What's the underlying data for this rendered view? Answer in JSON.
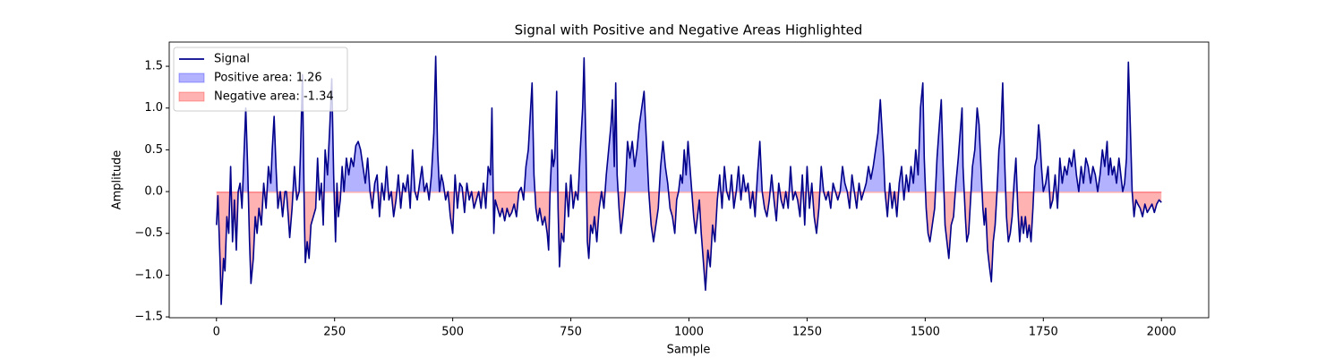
{
  "chart_data": {
    "type": "line",
    "title": "Signal with Positive and Negative Areas Highlighted",
    "xlabel": "Sample",
    "ylabel": "Amplitude",
    "xlim": [
      -100,
      2100
    ],
    "xticks": [
      0,
      250,
      500,
      750,
      1000,
      1250,
      1500,
      1750,
      2000
    ],
    "ylim": [
      -1.51,
      1.79
    ],
    "yticks": [
      {
        "value": -1.5,
        "label": "−1.5"
      },
      {
        "value": -1.0,
        "label": "−1.0"
      },
      {
        "value": -0.5,
        "label": "−0.5"
      },
      {
        "value": 0,
        "label": "0.0"
      },
      {
        "value": 0.5,
        "label": "0.5"
      },
      {
        "value": 1.0,
        "label": "1.0"
      },
      {
        "value": 1.5,
        "label": "1.5"
      }
    ],
    "legend": "upper left",
    "fills": [
      {
        "name": "Positive area: 1.26",
        "color": "#0000ff",
        "where": "above"
      },
      {
        "name": "Negative area: -1.34",
        "color": "#ff0000",
        "where": "below"
      }
    ],
    "x": [
      0,
      3,
      8,
      10,
      15,
      18,
      22,
      26,
      30,
      34,
      38,
      42,
      46,
      50,
      54,
      58,
      62,
      66,
      70,
      73,
      78,
      82,
      86,
      90,
      95,
      100,
      105,
      110,
      115,
      118,
      122,
      126,
      130,
      135,
      140,
      145,
      148,
      152,
      155,
      160,
      165,
      170,
      175,
      178,
      182,
      186,
      188,
      192,
      196,
      200,
      205,
      210,
      214,
      218,
      222,
      226,
      230,
      235,
      240,
      244,
      248,
      252,
      255,
      258,
      262,
      266,
      270,
      275,
      280,
      285,
      290,
      295,
      300,
      305,
      310,
      315,
      320,
      325,
      330,
      335,
      340,
      345,
      350,
      355,
      360,
      365,
      370,
      375,
      380,
      385,
      390,
      395,
      400,
      405,
      410,
      415,
      420,
      425,
      430,
      435,
      440,
      445,
      450,
      455,
      460,
      464,
      468,
      472,
      476,
      480,
      485,
      490,
      495,
      500,
      505,
      510,
      515,
      520,
      525,
      530,
      535,
      540,
      545,
      550,
      555,
      560,
      565,
      570,
      575,
      580,
      583,
      587,
      590,
      595,
      600,
      605,
      610,
      615,
      620,
      625,
      630,
      635,
      640,
      645,
      650,
      655,
      660,
      665,
      668,
      672,
      676,
      680,
      684,
      690,
      695,
      700,
      703,
      706,
      710,
      713,
      716,
      720,
      723,
      726,
      730,
      735,
      740,
      745,
      750,
      755,
      760,
      765,
      770,
      775,
      778,
      782,
      785,
      788,
      792,
      796,
      800,
      805,
      810,
      815,
      820,
      825,
      830,
      835,
      838,
      842,
      845,
      848,
      852,
      856,
      860,
      865,
      870,
      875,
      880,
      885,
      890,
      895,
      900,
      905,
      910,
      915,
      920,
      925,
      930,
      935,
      940,
      945,
      950,
      955,
      960,
      965,
      970,
      974,
      978,
      982,
      986,
      990,
      994,
      998,
      1002,
      1006,
      1010,
      1014,
      1018,
      1022,
      1026,
      1030,
      1035,
      1040,
      1045,
      1050,
      1055,
      1060,
      1065,
      1070,
      1075,
      1080,
      1085,
      1090,
      1095,
      1100,
      1105,
      1110,
      1115,
      1120,
      1125,
      1130,
      1135,
      1140,
      1145,
      1150,
      1155,
      1160,
      1165,
      1170,
      1175,
      1180,
      1185,
      1190,
      1195,
      1200,
      1205,
      1210,
      1215,
      1220,
      1225,
      1230,
      1235,
      1240,
      1245,
      1250,
      1255,
      1260,
      1265,
      1270,
      1275,
      1280,
      1285,
      1290,
      1295,
      1300,
      1305,
      1310,
      1315,
      1320,
      1325,
      1330,
      1335,
      1340,
      1345,
      1350,
      1355,
      1360,
      1365,
      1370,
      1375,
      1380,
      1385,
      1390,
      1395,
      1400,
      1405,
      1408,
      1412,
      1415,
      1420,
      1425,
      1430,
      1435,
      1440,
      1445,
      1450,
      1455,
      1460,
      1465,
      1470,
      1475,
      1480,
      1485,
      1490,
      1495,
      1498,
      1502,
      1506,
      1510,
      1515,
      1520,
      1525,
      1530,
      1534,
      1538,
      1542,
      1546,
      1550,
      1555,
      1560,
      1565,
      1570,
      1574,
      1578,
      1580,
      1585,
      1588,
      1592,
      1596,
      1600,
      1605,
      1610,
      1614,
      1618,
      1622,
      1625,
      1628,
      1632,
      1636,
      1640,
      1644,
      1648,
      1652,
      1656,
      1660,
      1664,
      1668,
      1672,
      1676,
      1680,
      1684,
      1688,
      1692,
      1696,
      1700,
      1704,
      1708,
      1712,
      1716,
      1720,
      1724,
      1728,
      1732,
      1736,
      1740,
      1743,
      1746,
      1750,
      1755,
      1760,
      1765,
      1770,
      1775,
      1780,
      1785,
      1790,
      1795,
      1800,
      1805,
      1810,
      1815,
      1820,
      1825,
      1830,
      1835,
      1840,
      1845,
      1850,
      1855,
      1860,
      1865,
      1870,
      1875,
      1880,
      1885,
      1888,
      1892,
      1896,
      1900,
      1905,
      1910,
      1914,
      1918,
      1922,
      1926,
      1930,
      1934,
      1938,
      1942,
      1946,
      1950,
      1955,
      1960,
      1965,
      1970,
      1975,
      1980,
      1985,
      1990,
      1995,
      2000
    ],
    "series": [
      {
        "name": "Signal",
        "color": "#00008b",
        "values": [
          -0.4,
          -0.05,
          -0.9,
          -1.35,
          -0.8,
          -0.95,
          -0.3,
          -0.5,
          0.3,
          -0.6,
          -0.1,
          -0.7,
          0.0,
          0.1,
          -0.2,
          0.4,
          1.0,
          0.3,
          -0.6,
          -1.1,
          -0.8,
          -0.3,
          -0.5,
          -0.2,
          -0.4,
          0.1,
          -0.2,
          0.3,
          0.1,
          0.5,
          0.9,
          0.3,
          -0.2,
          0.0,
          -0.3,
          0.0,
          0.0,
          -0.3,
          -0.55,
          -0.2,
          0.3,
          -0.1,
          0.0,
          0.5,
          1.4,
          -0.3,
          -0.85,
          -0.6,
          -0.8,
          -0.4,
          -0.3,
          -0.2,
          0.4,
          -0.1,
          0.1,
          -0.4,
          0.5,
          0.2,
          0.8,
          1.35,
          0.2,
          -0.6,
          0.1,
          -0.3,
          -0.1,
          0.3,
          0.0,
          0.4,
          0.2,
          0.4,
          0.3,
          0.55,
          0.6,
          0.5,
          0.3,
          0.1,
          0.4,
          0.0,
          -0.2,
          0.1,
          0.2,
          -0.3,
          0.1,
          -0.1,
          0.3,
          -0.1,
          0.0,
          -0.3,
          -0.1,
          0.2,
          -0.2,
          0.1,
          0.0,
          0.2,
          -0.2,
          0.5,
          0.0,
          -0.1,
          0.1,
          0.3,
          0.0,
          0.1,
          -0.1,
          0.2,
          0.7,
          1.62,
          0.5,
          0.0,
          0.2,
          0.1,
          -0.1,
          0.0,
          -0.3,
          -0.5,
          0.2,
          -0.2,
          0.1,
          0.05,
          -0.25,
          0.1,
          -0.1,
          0.0,
          -0.2,
          -0.1,
          0.0,
          -0.2,
          0.1,
          -0.2,
          0.3,
          0.2,
          1.0,
          -0.5,
          -0.1,
          -0.2,
          -0.3,
          -0.2,
          -0.35,
          -0.2,
          -0.3,
          -0.25,
          -0.15,
          -0.3,
          0.0,
          0.05,
          -0.1,
          0.3,
          0.5,
          1.0,
          1.3,
          0.2,
          -0.2,
          -0.35,
          -0.2,
          -0.4,
          -0.3,
          -0.5,
          -0.7,
          0.0,
          0.5,
          0.3,
          0.4,
          1.2,
          -0.2,
          -0.9,
          -0.5,
          -0.6,
          0.1,
          -0.3,
          0.2,
          -0.2,
          0.0,
          -0.1,
          0.5,
          1.0,
          1.6,
          0.5,
          -0.6,
          -0.8,
          -0.4,
          -0.5,
          -0.3,
          -0.6,
          -0.2,
          0.0,
          -0.2,
          0.2,
          0.5,
          0.8,
          1.1,
          0.3,
          1.3,
          0.2,
          -0.2,
          -0.5,
          -0.3,
          0.0,
          0.6,
          0.4,
          0.6,
          0.3,
          0.5,
          0.8,
          1.0,
          1.2,
          0.6,
          0.0,
          -0.4,
          -0.6,
          -0.4,
          -0.2,
          0.3,
          0.6,
          0.3,
          0.1,
          -0.2,
          -0.3,
          -0.5,
          -0.1,
          0.0,
          0.2,
          0.1,
          0.5,
          0.2,
          0.6,
          0.3,
          0.0,
          -0.3,
          -0.5,
          -0.3,
          -0.1,
          -0.5,
          -0.8,
          -1.18,
          -0.7,
          -0.9,
          -0.4,
          -0.6,
          -0.1,
          0.2,
          -0.2,
          0.3,
          0.0,
          -0.1,
          0.2,
          -0.2,
          0.0,
          0.3,
          -0.1,
          0.2,
          0.0,
          0.1,
          -0.2,
          0.0,
          -0.3,
          0.2,
          0.6,
          0.0,
          -0.2,
          -0.3,
          -0.1,
          0.2,
          -0.1,
          -0.35,
          0.1,
          -0.1,
          -0.2,
          0.0,
          -0.2,
          0.3,
          -0.1,
          0.0,
          -0.1,
          -0.3,
          0.2,
          -0.4,
          0.3,
          -0.2,
          0.1,
          -0.3,
          -0.5,
          -0.2,
          0.3,
          0.0,
          -0.1,
          0.0,
          -0.2,
          0.1,
          0.0,
          -0.1,
          0.0,
          0.3,
          0.1,
          0.0,
          -0.2,
          0.2,
          0.0,
          -0.2,
          0.1,
          -0.1,
          0.0,
          0.1,
          0.3,
          0.15,
          0.3,
          0.5,
          0.7,
          1.1,
          0.8,
          0.4,
          0.0,
          -0.3,
          0.1,
          -0.2,
          0.0,
          -0.3,
          0.1,
          0.3,
          -0.1,
          0.2,
          0.0,
          0.3,
          0.1,
          0.5,
          0.2,
          1.0,
          1.3,
          0.4,
          -0.2,
          -0.5,
          -0.6,
          -0.4,
          -0.2,
          0.4,
          0.8,
          1.1,
          0.3,
          -0.4,
          -0.6,
          -0.8,
          -0.4,
          -0.3,
          0.1,
          0.4,
          0.7,
          1.0,
          0.3,
          -0.3,
          -0.6,
          -0.5,
          -0.1,
          0.3,
          0.5,
          1.0,
          0.8,
          0.3,
          -0.2,
          -0.4,
          -0.2,
          -0.7,
          -0.9,
          -1.08,
          -0.6,
          -0.4,
          0.0,
          0.5,
          0.7,
          1.3,
          0.4,
          -0.3,
          -0.6,
          -0.5,
          -0.3,
          0.1,
          0.4,
          -0.2,
          -0.6,
          -0.3,
          -0.5,
          -0.3,
          -0.55,
          -0.4,
          -0.6,
          -0.2,
          0.3,
          0.4,
          0.8,
          0.6,
          0.3,
          0.0,
          0.1,
          0.3,
          -0.2,
          -0.1,
          0.2,
          -0.2,
          0.4,
          0.1,
          0.3,
          0.2,
          0.4,
          0.3,
          0.5,
          0.2,
          0.0,
          0.3,
          0.1,
          0.4,
          0.3,
          0.1,
          0.3,
          0.2,
          0.0,
          0.2,
          0.5,
          0.3,
          0.6,
          0.2,
          0.4,
          0.2,
          0.3,
          0.1,
          0.4,
          0.2,
          0.0,
          0.1,
          0.4,
          1.55,
          0.8,
          0.0,
          -0.3,
          -0.1,
          -0.15,
          -0.2,
          -0.3,
          -0.15,
          -0.25,
          -0.2,
          -0.15,
          -0.25,
          -0.15,
          -0.1,
          -0.13
        ]
      }
    ]
  }
}
